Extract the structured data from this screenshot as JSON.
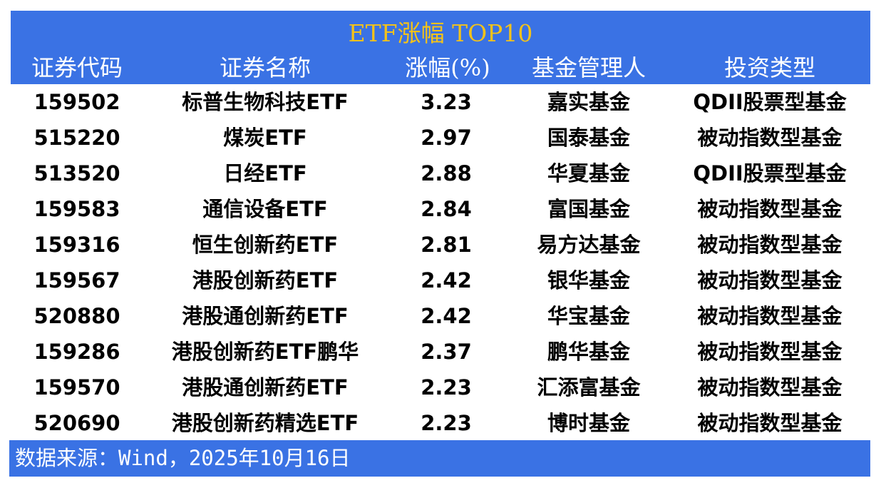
{
  "title": "ETF涨幅 TOP10",
  "columns": [
    "证券代码",
    "证券名称",
    "涨幅(%)",
    "基金管理人",
    "投资类型"
  ],
  "rows": [
    [
      "159502",
      "标普生物科技ETF",
      "3.23",
      "嘉实基金",
      "QDII股票型基金"
    ],
    [
      "515220",
      "煤炭ETF",
      "2.97",
      "国泰基金",
      "被动指数型基金"
    ],
    [
      "513520",
      "日经ETF",
      "2.88",
      "华夏基金",
      "QDII股票型基金"
    ],
    [
      "159583",
      "通信设备ETF",
      "2.84",
      "富国基金",
      "被动指数型基金"
    ],
    [
      "159316",
      "恒生创新药ETF",
      "2.81",
      "易方达基金",
      "被动指数型基金"
    ],
    [
      "159567",
      "港股创新药ETF",
      "2.42",
      "银华基金",
      "被动指数型基金"
    ],
    [
      "520880",
      "港股通创新药ETF",
      "2.42",
      "华宝基金",
      "被动指数型基金"
    ],
    [
      "159286",
      "港股创新药ETF鹏华",
      "2.37",
      "鹏华基金",
      "被动指数型基金"
    ],
    [
      "159570",
      "港股通创新药ETF",
      "2.23",
      "汇添富基金",
      "被动指数型基金"
    ],
    [
      "520690",
      "港股创新药精选ETF",
      "2.23",
      "博时基金",
      "被动指数型基金"
    ]
  ],
  "footer": "数据来源：Wind，2025年10月16日",
  "colors": {
    "header_bg": "#3a72e4",
    "title": "#f3c21a",
    "header_text": "#ffffff"
  }
}
